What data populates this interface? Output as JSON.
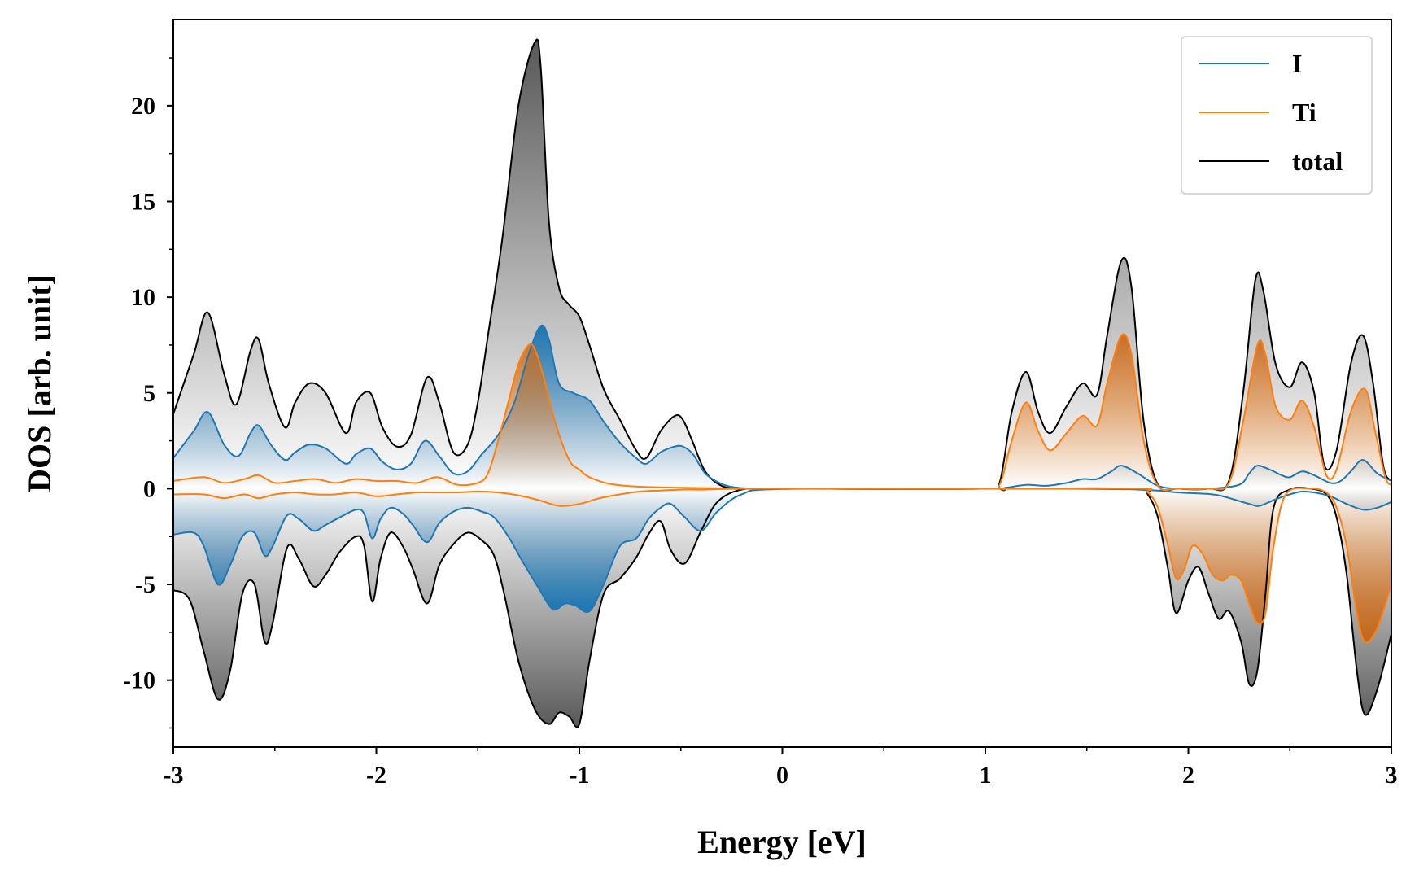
{
  "chart_data": {
    "type": "line",
    "title": "",
    "xlabel": "Energy [eV]",
    "ylabel": "DOS [arb. unit]",
    "xlim": [
      -3,
      3
    ],
    "ylim": [
      -13.5,
      24.5
    ],
    "xticks": [
      -3,
      -2,
      -1,
      0,
      1,
      2,
      3
    ],
    "xtick_labels": [
      "-3",
      "-2",
      "-1",
      "0",
      "1",
      "2",
      "3"
    ],
    "yticks": [
      -10,
      -5,
      0,
      5,
      10,
      15,
      20
    ],
    "ytick_labels": [
      "-10",
      "-5",
      "0",
      "5",
      "10",
      "15",
      "20"
    ],
    "grid": false,
    "legend_position": "top-right",
    "colors": {
      "I": "#1f77b4",
      "Ti": "#ff7f0e",
      "total": "#000000",
      "fill_total": "#555555"
    },
    "legend": [
      {
        "label": "I",
        "color": "#1f77b4"
      },
      {
        "label": "Ti",
        "color": "#ff7f0e"
      },
      {
        "label": "total",
        "color": "#000000"
      }
    ],
    "series": [
      {
        "name": "total (spin up)",
        "legend": "total",
        "x": [
          -3.0,
          -2.9,
          -2.83,
          -2.75,
          -2.69,
          -2.62,
          -2.58,
          -2.53,
          -2.45,
          -2.4,
          -2.33,
          -2.25,
          -2.15,
          -2.1,
          -2.03,
          -1.97,
          -1.9,
          -1.83,
          -1.75,
          -1.69,
          -1.62,
          -1.55,
          -1.5,
          -1.45,
          -1.38,
          -1.3,
          -1.22,
          -1.19,
          -1.15,
          -1.1,
          -1.05,
          -1.0,
          -0.95,
          -0.88,
          -0.8,
          -0.72,
          -0.67,
          -0.6,
          -0.53,
          -0.49,
          -0.44,
          -0.38,
          -0.3,
          -0.2,
          0.0,
          1.0,
          1.07,
          1.13,
          1.2,
          1.26,
          1.32,
          1.4,
          1.48,
          1.55,
          1.6,
          1.67,
          1.72,
          1.78,
          1.85,
          1.95,
          2.1,
          2.2,
          2.27,
          2.33,
          2.37,
          2.43,
          2.5,
          2.56,
          2.62,
          2.67,
          2.73,
          2.8,
          2.86,
          2.91,
          2.96,
          3.0
        ],
        "y": [
          3.9,
          7.0,
          9.2,
          6.0,
          4.4,
          7.2,
          7.8,
          5.5,
          3.2,
          4.5,
          5.5,
          5.0,
          2.9,
          4.5,
          5.0,
          3.2,
          2.2,
          2.8,
          5.8,
          4.5,
          1.9,
          2.3,
          4.5,
          8.0,
          13.0,
          20.0,
          23.3,
          22.0,
          14.0,
          10.5,
          9.6,
          9.0,
          7.5,
          5.2,
          3.6,
          2.0,
          1.6,
          3.0,
          3.8,
          3.6,
          2.4,
          0.9,
          0.15,
          0.0,
          0.0,
          0.0,
          0.3,
          4.0,
          6.1,
          4.0,
          2.9,
          4.3,
          5.5,
          4.9,
          8.0,
          11.9,
          10.5,
          3.5,
          0.2,
          0.0,
          0.0,
          0.4,
          5.0,
          10.9,
          10.3,
          6.5,
          5.3,
          6.6,
          5.0,
          1.2,
          2.0,
          6.5,
          8.0,
          5.5,
          1.2,
          0.4
        ]
      },
      {
        "name": "I (spin up)",
        "legend": "I",
        "x": [
          -3.0,
          -2.9,
          -2.83,
          -2.75,
          -2.68,
          -2.62,
          -2.58,
          -2.52,
          -2.45,
          -2.4,
          -2.33,
          -2.25,
          -2.15,
          -2.1,
          -2.03,
          -1.97,
          -1.9,
          -1.83,
          -1.76,
          -1.69,
          -1.62,
          -1.55,
          -1.48,
          -1.4,
          -1.32,
          -1.25,
          -1.19,
          -1.15,
          -1.1,
          -1.03,
          -0.95,
          -0.88,
          -0.8,
          -0.72,
          -0.67,
          -0.6,
          -0.53,
          -0.49,
          -0.44,
          -0.38,
          -0.3,
          -0.22,
          -0.1,
          0.0,
          1.0,
          1.1,
          1.2,
          1.3,
          1.4,
          1.48,
          1.55,
          1.62,
          1.67,
          1.75,
          1.85,
          1.95,
          2.1,
          2.25,
          2.3,
          2.34,
          2.4,
          2.46,
          2.5,
          2.56,
          2.62,
          2.7,
          2.75,
          2.8,
          2.86,
          2.93,
          3.0
        ],
        "y": [
          1.6,
          3.0,
          4.0,
          2.3,
          1.7,
          2.9,
          3.3,
          2.3,
          1.5,
          1.9,
          2.3,
          2.1,
          1.3,
          1.8,
          2.1,
          1.4,
          1.0,
          1.3,
          2.5,
          1.7,
          0.8,
          0.9,
          1.8,
          2.8,
          4.5,
          7.0,
          8.5,
          7.8,
          5.5,
          5.0,
          4.6,
          3.5,
          2.4,
          1.6,
          1.3,
          1.9,
          2.2,
          2.2,
          1.8,
          0.8,
          0.25,
          0.05,
          0.0,
          0.0,
          0.0,
          0.05,
          0.2,
          0.15,
          0.3,
          0.5,
          0.5,
          0.9,
          1.2,
          0.8,
          0.15,
          0.0,
          0.0,
          0.2,
          0.8,
          1.2,
          1.0,
          0.7,
          0.6,
          0.9,
          0.7,
          0.3,
          0.4,
          0.9,
          1.5,
          0.8,
          0.4
        ]
      },
      {
        "name": "Ti (spin up)",
        "legend": "Ti",
        "x": [
          -3.0,
          -2.85,
          -2.75,
          -2.65,
          -2.58,
          -2.5,
          -2.4,
          -2.3,
          -2.2,
          -2.1,
          -2.0,
          -1.9,
          -1.8,
          -1.7,
          -1.6,
          -1.5,
          -1.45,
          -1.4,
          -1.35,
          -1.3,
          -1.25,
          -1.22,
          -1.18,
          -1.12,
          -1.05,
          -1.0,
          -0.95,
          -0.85,
          -0.7,
          -0.5,
          -0.3,
          -0.2,
          0.0,
          1.0,
          1.07,
          1.13,
          1.2,
          1.26,
          1.32,
          1.4,
          1.48,
          1.55,
          1.6,
          1.67,
          1.72,
          1.78,
          1.85,
          1.95,
          2.1,
          2.2,
          2.27,
          2.34,
          2.38,
          2.43,
          2.5,
          2.56,
          2.62,
          2.68,
          2.73,
          2.8,
          2.87,
          2.92,
          2.97,
          3.0
        ],
        "y": [
          0.4,
          0.6,
          0.3,
          0.5,
          0.7,
          0.3,
          0.4,
          0.5,
          0.3,
          0.5,
          0.4,
          0.4,
          0.3,
          0.6,
          0.2,
          0.3,
          0.8,
          2.5,
          4.5,
          6.5,
          7.5,
          7.3,
          6.0,
          3.5,
          1.5,
          1.0,
          0.6,
          0.25,
          0.1,
          0.05,
          0.02,
          0.0,
          0.0,
          0.0,
          0.2,
          2.5,
          4.5,
          3.0,
          2.0,
          2.9,
          3.8,
          3.3,
          5.5,
          8.0,
          7.0,
          2.5,
          0.15,
          0.0,
          0.0,
          0.3,
          3.5,
          7.5,
          7.0,
          4.3,
          3.6,
          4.6,
          3.2,
          0.7,
          1.0,
          4.0,
          5.2,
          3.0,
          0.6,
          0.2
        ]
      },
      {
        "name": "total (spin down)",
        "legend": "total",
        "x": [
          -3.0,
          -2.92,
          -2.85,
          -2.78,
          -2.72,
          -2.66,
          -2.6,
          -2.55,
          -2.51,
          -2.44,
          -2.38,
          -2.31,
          -2.25,
          -2.18,
          -2.1,
          -2.06,
          -2.02,
          -1.98,
          -1.93,
          -1.87,
          -1.82,
          -1.75,
          -1.69,
          -1.62,
          -1.55,
          -1.48,
          -1.42,
          -1.37,
          -1.3,
          -1.22,
          -1.15,
          -1.1,
          -1.05,
          -1.0,
          -0.95,
          -0.88,
          -0.8,
          -0.72,
          -0.66,
          -0.6,
          -0.55,
          -0.48,
          -0.4,
          -0.32,
          -0.2,
          0.0,
          1.0,
          1.75,
          1.8,
          1.85,
          1.9,
          1.94,
          2.0,
          2.05,
          2.1,
          2.15,
          2.2,
          2.26,
          2.3,
          2.34,
          2.38,
          2.42,
          2.5,
          2.6,
          2.68,
          2.73,
          2.78,
          2.83,
          2.87,
          2.93,
          3.0
        ],
        "y": [
          -5.3,
          -5.8,
          -8.5,
          -11.0,
          -9.5,
          -5.5,
          -5.0,
          -8.0,
          -7.0,
          -3.1,
          -3.7,
          -5.1,
          -4.5,
          -3.3,
          -2.5,
          -3.0,
          -5.9,
          -3.7,
          -2.3,
          -3.0,
          -4.2,
          -6.0,
          -4.0,
          -2.9,
          -2.3,
          -2.7,
          -3.5,
          -5.5,
          -9.0,
          -11.5,
          -12.3,
          -11.7,
          -11.9,
          -12.3,
          -9.0,
          -5.5,
          -4.7,
          -3.6,
          -2.4,
          -1.7,
          -3.2,
          -3.9,
          -2.2,
          -0.7,
          -0.05,
          0.0,
          0.0,
          0.0,
          -0.3,
          -1.5,
          -4.2,
          -6.5,
          -4.8,
          -4.1,
          -5.5,
          -6.8,
          -6.4,
          -8.0,
          -10.2,
          -9.5,
          -5.5,
          -1.0,
          -0.05,
          0.0,
          -0.3,
          -1.5,
          -4.5,
          -9.5,
          -11.8,
          -10.5,
          -7.6
        ]
      },
      {
        "name": "I (spin down)",
        "legend": "I",
        "x": [
          -3.0,
          -2.9,
          -2.85,
          -2.78,
          -2.72,
          -2.66,
          -2.6,
          -2.55,
          -2.51,
          -2.44,
          -2.38,
          -2.31,
          -2.25,
          -2.18,
          -2.1,
          -2.06,
          -2.02,
          -1.98,
          -1.93,
          -1.87,
          -1.82,
          -1.75,
          -1.69,
          -1.62,
          -1.55,
          -1.48,
          -1.42,
          -1.35,
          -1.28,
          -1.2,
          -1.13,
          -1.07,
          -1.02,
          -0.95,
          -0.88,
          -0.8,
          -0.72,
          -0.66,
          -0.6,
          -0.55,
          -0.48,
          -0.4,
          -0.32,
          -0.2,
          0.0,
          1.0,
          1.3,
          1.5,
          1.7,
          1.85,
          1.95,
          2.05,
          2.15,
          2.3,
          2.35,
          2.42,
          2.5,
          2.56,
          2.62,
          2.7,
          2.78,
          2.86,
          2.93,
          3.0
        ],
        "y": [
          -2.4,
          -2.3,
          -3.0,
          -5.0,
          -4.0,
          -2.5,
          -2.3,
          -3.5,
          -3.0,
          -1.4,
          -1.6,
          -2.2,
          -1.9,
          -1.5,
          -1.1,
          -1.3,
          -2.6,
          -1.6,
          -1.0,
          -1.3,
          -1.9,
          -2.8,
          -1.8,
          -1.2,
          -1.0,
          -1.2,
          -1.5,
          -2.5,
          -3.8,
          -5.2,
          -6.3,
          -6.0,
          -6.1,
          -6.4,
          -5.0,
          -3.0,
          -2.6,
          -1.6,
          -1.0,
          -0.8,
          -1.5,
          -2.2,
          -1.2,
          -0.3,
          -0.02,
          0.0,
          0.0,
          -0.01,
          -0.03,
          -0.1,
          -0.2,
          -0.25,
          -0.35,
          -0.8,
          -0.9,
          -0.6,
          -0.3,
          -0.15,
          -0.2,
          -0.4,
          -0.8,
          -1.1,
          -1.0,
          -0.7
        ]
      },
      {
        "name": "Ti (spin down)",
        "legend": "Ti",
        "x": [
          -3.0,
          -2.85,
          -2.75,
          -2.65,
          -2.58,
          -2.5,
          -2.4,
          -2.3,
          -2.2,
          -2.1,
          -2.0,
          -1.9,
          -1.8,
          -1.7,
          -1.6,
          -1.5,
          -1.4,
          -1.3,
          -1.2,
          -1.1,
          -1.0,
          -0.9,
          -0.8,
          -0.7,
          -0.6,
          -0.5,
          -0.4,
          -0.3,
          -0.2,
          0.0,
          1.0,
          1.75,
          1.8,
          1.85,
          1.9,
          1.94,
          1.98,
          2.02,
          2.07,
          2.12,
          2.17,
          2.21,
          2.26,
          2.3,
          2.34,
          2.38,
          2.42,
          2.48,
          2.6,
          2.68,
          2.73,
          2.78,
          2.83,
          2.87,
          2.93,
          3.0
        ],
        "y": [
          -0.3,
          -0.3,
          -0.5,
          -0.3,
          -0.5,
          -0.3,
          -0.2,
          -0.3,
          -0.3,
          -0.2,
          -0.4,
          -0.3,
          -0.2,
          -0.2,
          -0.2,
          -0.15,
          -0.2,
          -0.35,
          -0.6,
          -0.9,
          -0.8,
          -0.5,
          -0.3,
          -0.15,
          -0.1,
          -0.05,
          -0.05,
          -0.02,
          -0.01,
          0.0,
          0.0,
          0.0,
          -0.2,
          -1.0,
          -3.0,
          -4.7,
          -4.2,
          -3.0,
          -3.4,
          -4.5,
          -4.8,
          -4.5,
          -4.8,
          -6.0,
          -7.0,
          -6.5,
          -3.0,
          -0.3,
          0.0,
          -0.2,
          -1.0,
          -3.0,
          -6.5,
          -8.0,
          -7.3,
          -5.0
        ]
      }
    ]
  }
}
